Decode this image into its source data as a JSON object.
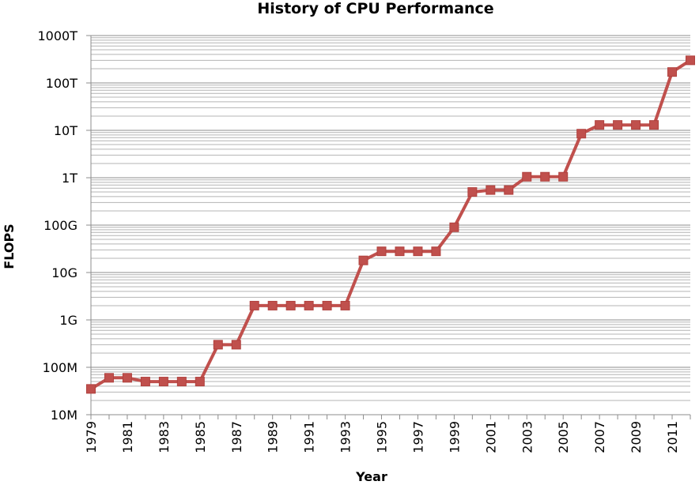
{
  "chart_data": {
    "type": "line",
    "title": "History of CPU Performance",
    "xlabel": "Year",
    "ylabel": "FLOPS",
    "y_scale": "log",
    "ylim": [
      10000000,
      1000000000000000
    ],
    "y_tick_labels": [
      "10M",
      "100M",
      "1G",
      "10G",
      "100G",
      "1T",
      "10T",
      "100T",
      "1000T"
    ],
    "x_tick_labels": [
      "1979",
      "1981",
      "1983",
      "1985",
      "1987",
      "1989",
      "1991",
      "1993",
      "1995",
      "1997",
      "1999",
      "2001",
      "2003",
      "2005",
      "2007",
      "2009",
      "2011"
    ],
    "xlim": [
      1979,
      2012
    ],
    "grid": true,
    "legend": "none",
    "series": [
      {
        "color": "#C0504D",
        "x": [
          1979,
          1980,
          1981,
          1982,
          1983,
          1984,
          1985,
          1986,
          1987,
          1988,
          1989,
          1990,
          1991,
          1992,
          1993,
          1994,
          1995,
          1996,
          1997,
          1998,
          1999,
          2000,
          2001,
          2002,
          2003,
          2004,
          2005,
          2006,
          2007,
          2008,
          2009,
          2010,
          2011,
          2012
        ],
        "y": [
          35000000,
          60000000,
          60000000,
          50000000,
          50000000,
          50000000,
          50000000,
          300000000,
          300000000,
          2000000000,
          2000000000,
          2000000000,
          2000000000,
          2000000000,
          2000000000,
          18000000000,
          28000000000,
          28000000000,
          28000000000,
          28000000000,
          90000000000,
          500000000000,
          550000000000,
          550000000000,
          1050000000000,
          1050000000000,
          1050000000000,
          8500000000000,
          13000000000000,
          13000000000000,
          13000000000000,
          13000000000000,
          170000000000000,
          300000000000000
        ]
      }
    ]
  }
}
